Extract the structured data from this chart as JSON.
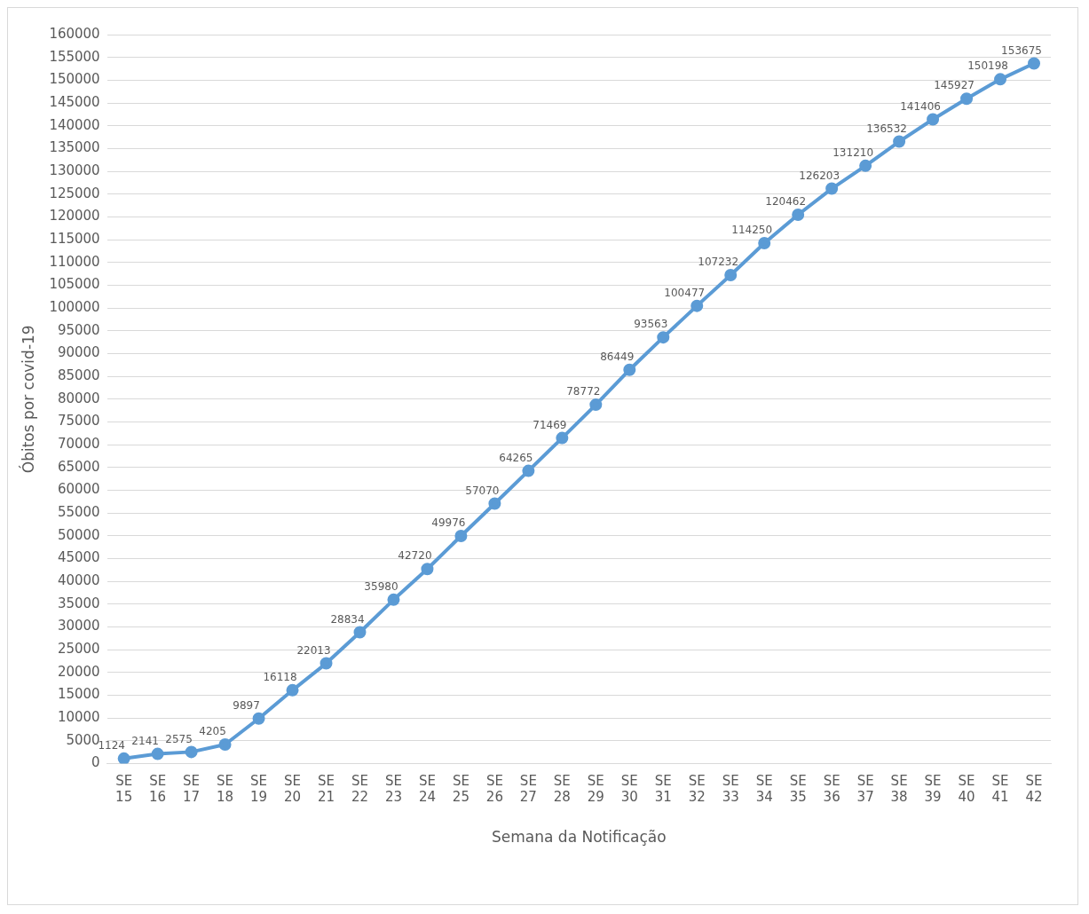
{
  "chart_data": {
    "type": "line",
    "xlabel": "Semana da Notificação",
    "ylabel": "Óbitos por covid-19",
    "categories": [
      "SE 15",
      "SE 16",
      "SE 17",
      "SE 18",
      "SE 19",
      "SE 20",
      "SE 21",
      "SE 22",
      "SE 23",
      "SE 24",
      "SE 25",
      "SE 26",
      "SE 27",
      "SE 28",
      "SE 29",
      "SE 30",
      "SE 31",
      "SE 32",
      "SE 33",
      "SE 34",
      "SE 35",
      "SE 36",
      "SE 37",
      "SE 38",
      "SE 39",
      "SE 40",
      "SE 41",
      "SE 42"
    ],
    "series": [
      {
        "color": "#5b9bd5",
        "values": [
          1124,
          2141,
          2575,
          4205,
          9897,
          16118,
          22013,
          28834,
          35980,
          42720,
          49976,
          57070,
          64265,
          71469,
          78772,
          86449,
          93563,
          100477,
          107232,
          114250,
          120462,
          126203,
          131210,
          136532,
          141406,
          145927,
          150198,
          153675
        ]
      }
    ],
    "ylim": [
      0,
      160000
    ],
    "yticks": [
      0,
      5000,
      10000,
      15000,
      20000,
      25000,
      30000,
      35000,
      40000,
      45000,
      50000,
      55000,
      60000,
      65000,
      70000,
      75000,
      80000,
      85000,
      90000,
      95000,
      100000,
      105000,
      110000,
      115000,
      120000,
      125000,
      130000,
      135000,
      140000,
      145000,
      150000,
      155000,
      160000
    ],
    "grid": "y",
    "legend": false,
    "marker": "circle",
    "line_style": "solid",
    "data_labels": true
  }
}
